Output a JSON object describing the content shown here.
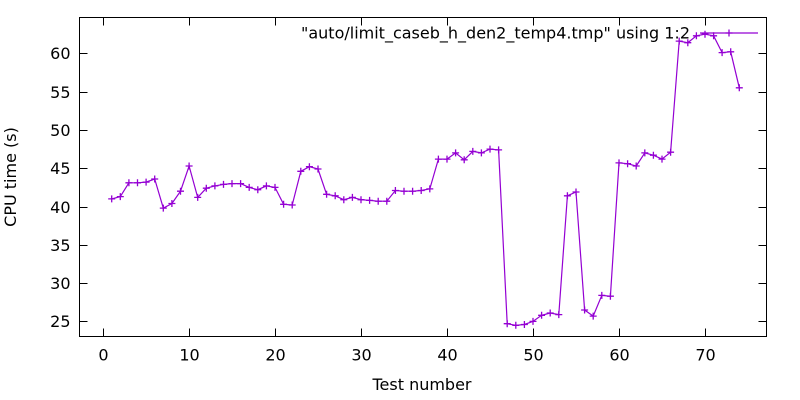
{
  "chart_data": {
    "type": "line",
    "legend_label": "\"auto/limit_caseb_h_den2_temp4.tmp\" using 1:2",
    "xlabel": "Test number",
    "ylabel": "CPU time (s)",
    "series_color": "#9400d3",
    "background_color": "#ffffff",
    "marker": "plus",
    "line_style": "linespoints",
    "grid": false,
    "legend_position": "top-right-inside",
    "xticks": [
      0,
      10,
      20,
      30,
      40,
      50,
      60,
      70
    ],
    "yticks": [
      25,
      30,
      35,
      40,
      45,
      50,
      55,
      60
    ],
    "xlim": [
      -2.8,
      77.1
    ],
    "ylim": [
      23.1,
      64.75
    ],
    "points": [
      [
        1,
        41.0
      ],
      [
        2,
        41.3
      ],
      [
        3,
        43.1
      ],
      [
        4,
        43.1
      ],
      [
        5,
        43.2
      ],
      [
        6,
        43.6
      ],
      [
        7,
        39.8
      ],
      [
        8,
        40.4
      ],
      [
        9,
        42.0
      ],
      [
        10,
        45.3
      ],
      [
        11,
        41.2
      ],
      [
        12,
        42.4
      ],
      [
        13,
        42.7
      ],
      [
        14,
        42.9
      ],
      [
        15,
        43.0
      ],
      [
        16,
        43.0
      ],
      [
        17,
        42.5
      ],
      [
        18,
        42.2
      ],
      [
        19,
        42.7
      ],
      [
        20,
        42.5
      ],
      [
        21,
        40.3
      ],
      [
        22,
        40.2
      ],
      [
        23,
        44.6
      ],
      [
        24,
        45.2
      ],
      [
        25,
        44.9
      ],
      [
        26,
        41.6
      ],
      [
        27,
        41.4
      ],
      [
        28,
        40.9
      ],
      [
        29,
        41.2
      ],
      [
        30,
        40.9
      ],
      [
        31,
        40.8
      ],
      [
        32,
        40.7
      ],
      [
        33,
        40.7
      ],
      [
        34,
        42.1
      ],
      [
        35,
        42.0
      ],
      [
        36,
        42.0
      ],
      [
        37,
        42.1
      ],
      [
        38,
        42.3
      ],
      [
        39,
        46.2
      ],
      [
        40,
        46.2
      ],
      [
        41,
        47.0
      ],
      [
        42,
        46.1
      ],
      [
        43,
        47.2
      ],
      [
        44,
        47.0
      ],
      [
        45,
        47.5
      ],
      [
        46,
        47.4
      ],
      [
        47,
        24.7
      ],
      [
        48,
        24.5
      ],
      [
        49,
        24.6
      ],
      [
        50,
        25.0
      ],
      [
        51,
        25.8
      ],
      [
        52,
        26.1
      ],
      [
        53,
        25.9
      ],
      [
        54,
        41.4
      ],
      [
        55,
        41.9
      ],
      [
        56,
        26.5
      ],
      [
        57,
        25.7
      ],
      [
        58,
        28.4
      ],
      [
        59,
        28.3
      ],
      [
        60,
        45.7
      ],
      [
        61,
        45.6
      ],
      [
        62,
        45.3
      ],
      [
        63,
        47.0
      ],
      [
        64,
        46.7
      ],
      [
        65,
        46.2
      ],
      [
        66,
        47.1
      ],
      [
        67,
        61.6
      ],
      [
        68,
        61.4
      ],
      [
        69,
        62.3
      ],
      [
        70,
        62.5
      ],
      [
        71,
        62.3
      ],
      [
        72,
        60.1
      ],
      [
        73,
        60.2
      ],
      [
        74,
        55.5
      ]
    ]
  }
}
